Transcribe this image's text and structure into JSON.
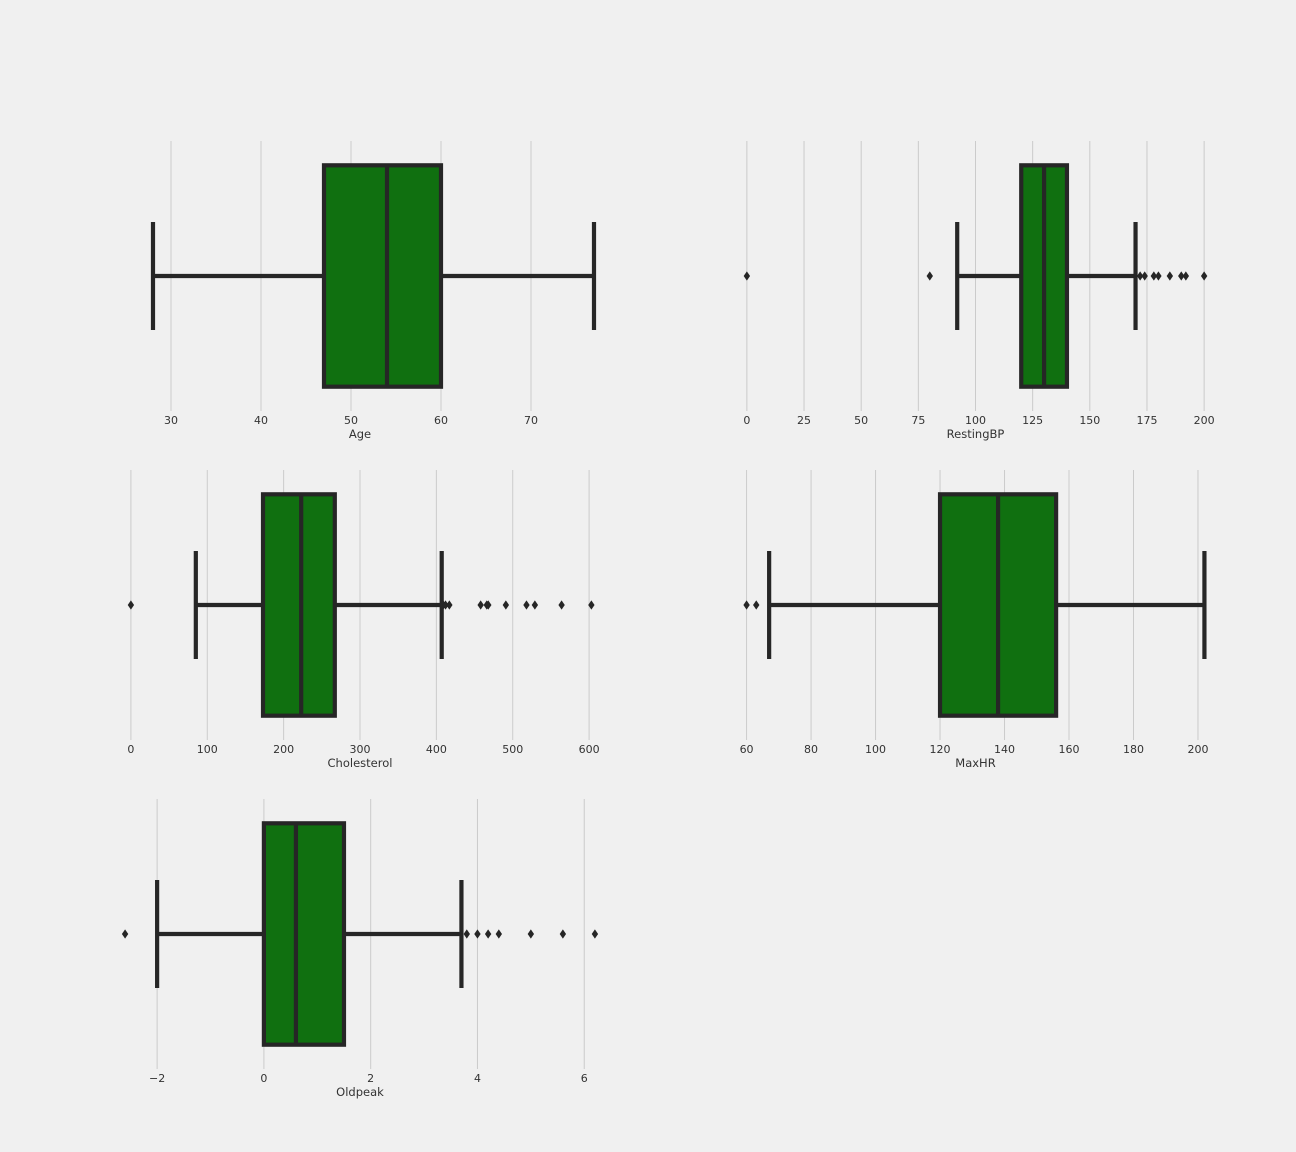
{
  "chart_data": [
    {
      "type": "box",
      "xlabel": "Age",
      "ticks": [
        30,
        40,
        50,
        60,
        70
      ],
      "xlim": [
        23,
        79
      ],
      "box": {
        "whislo": 28,
        "q1": 47,
        "med": 54,
        "q3": 60,
        "whishi": 77
      },
      "outliers": []
    },
    {
      "type": "box",
      "xlabel": "RestingBP",
      "ticks": [
        0,
        25,
        50,
        75,
        100,
        125,
        150,
        175,
        200
      ],
      "xlim": [
        -10,
        210
      ],
      "box": {
        "whislo": 92,
        "q1": 120,
        "med": 130,
        "q3": 140,
        "whishi": 170
      },
      "outliers": [
        0,
        80,
        172,
        174,
        178,
        180,
        185,
        190,
        192,
        200
      ]
    },
    {
      "type": "box",
      "xlabel": "Cholesterol",
      "ticks": [
        0,
        100,
        200,
        300,
        400,
        500,
        600
      ],
      "xlim": [
        -30,
        630
      ],
      "box": {
        "whislo": 85,
        "q1": 173,
        "med": 223,
        "q3": 267,
        "whishi": 407
      },
      "outliers": [
        0,
        409,
        412,
        417,
        458,
        466,
        468,
        491,
        518,
        529,
        564,
        603
      ]
    },
    {
      "type": "box",
      "xlabel": "MaxHR",
      "ticks": [
        60,
        80,
        100,
        120,
        140,
        160,
        180,
        200
      ],
      "xlim": [
        53,
        209
      ],
      "box": {
        "whislo": 67,
        "q1": 120,
        "med": 138,
        "q3": 156,
        "whishi": 202
      },
      "outliers": [
        60,
        63
      ]
    },
    {
      "type": "box",
      "xlabel": "Oldpeak",
      "ticks": [
        "−2",
        "0",
        "2",
        "4",
        "6"
      ],
      "tick_values": [
        -2,
        0,
        2,
        4,
        6
      ],
      "xlim": [
        -2.92,
        6.52
      ],
      "box": {
        "whislo": -2,
        "q1": 0,
        "med": 0.6,
        "q3": 1.5,
        "whishi": 3.7
      },
      "outliers": [
        -2.6,
        3.8,
        4.0,
        4.2,
        4.4,
        5.0,
        5.6,
        6.2
      ]
    }
  ],
  "colors": {
    "background": "#f0f0f0",
    "box_fill": "#107010",
    "line": "#262626",
    "grid": "#cbcbcb"
  }
}
